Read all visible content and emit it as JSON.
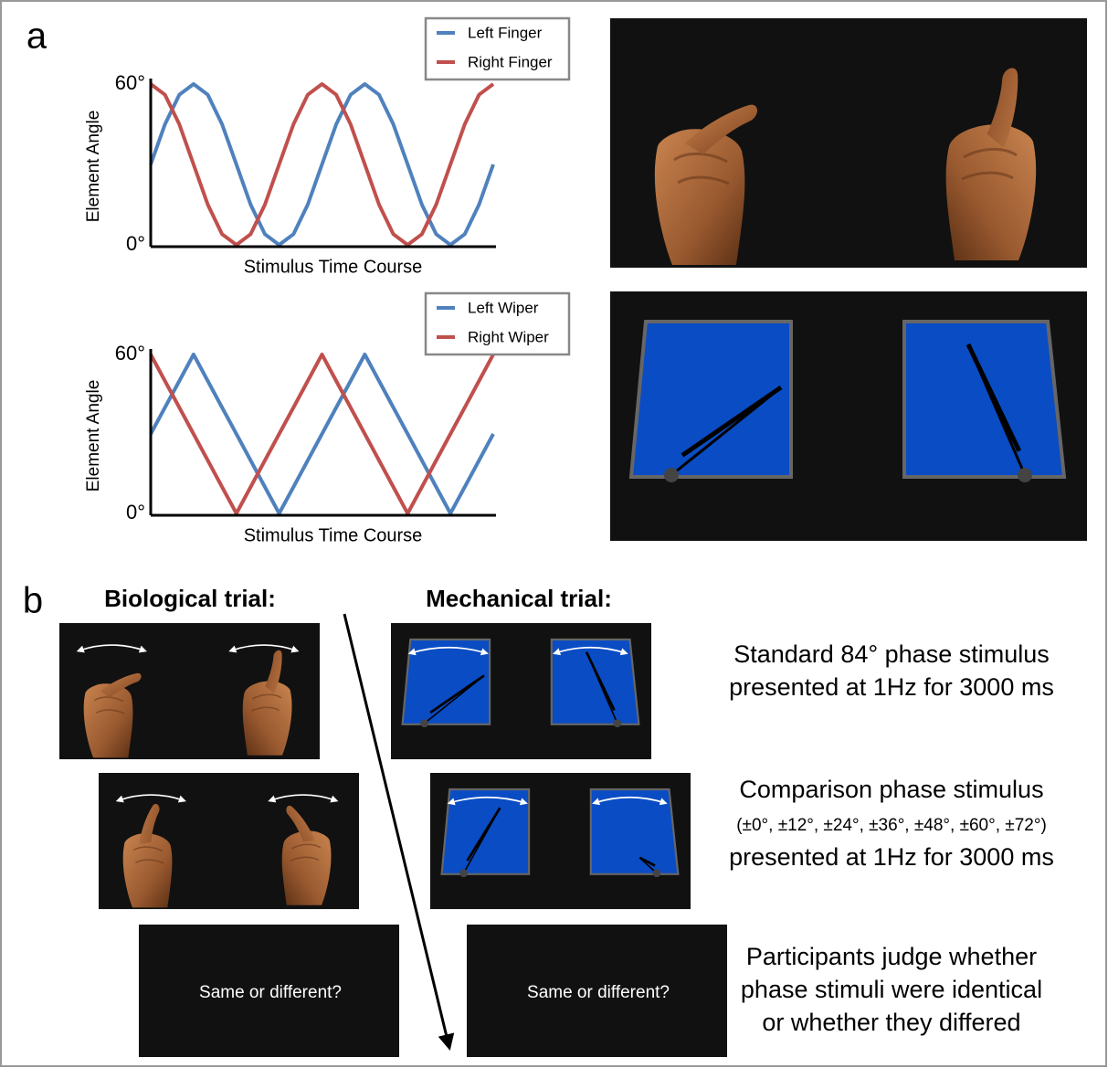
{
  "panel_labels": [
    "a",
    "b"
  ],
  "chart_data": [
    {
      "type": "line",
      "x_label": "Stimulus Time Course",
      "y_label": "Element Angle",
      "ylim": [
        0,
        60
      ],
      "yticks": [
        {
          "value": 0,
          "label": "0°"
        },
        {
          "value": 60,
          "label": "60°"
        }
      ],
      "legend": "top-right",
      "series": [
        {
          "name": "Left Finger",
          "color": "#4f81bd",
          "shape": "sine",
          "values": [
            30,
            45,
            56,
            60,
            56,
            45,
            30,
            15,
            4,
            0,
            4,
            15,
            30,
            45,
            56,
            60,
            56,
            45,
            30,
            15,
            4,
            0,
            4,
            15,
            30
          ]
        },
        {
          "name": "Right Finger",
          "color": "#c0504d",
          "shape": "sine",
          "values": [
            60,
            56,
            45,
            30,
            15,
            4,
            0,
            4,
            15,
            30,
            45,
            56,
            60,
            56,
            45,
            30,
            15,
            4,
            0,
            4,
            15,
            30,
            45,
            56,
            60
          ]
        }
      ]
    },
    {
      "type": "line",
      "x_label": "Stimulus Time Course",
      "y_label": "Element Angle",
      "ylim": [
        0,
        60
      ],
      "yticks": [
        {
          "value": 0,
          "label": "0°"
        },
        {
          "value": 60,
          "label": "60°"
        }
      ],
      "legend": "top-right",
      "series": [
        {
          "name": "Left Wiper",
          "color": "#4f81bd",
          "values": [
            30,
            40,
            50,
            60,
            50,
            40,
            30,
            20,
            10,
            0,
            10,
            20,
            30,
            40,
            50,
            60,
            50,
            40,
            30,
            20,
            10,
            0,
            10,
            20,
            30
          ]
        },
        {
          "name": "Right Wiper",
          "color": "#c0504d",
          "values": [
            60,
            50,
            40,
            30,
            20,
            10,
            0,
            10,
            20,
            30,
            40,
            50,
            60,
            50,
            40,
            30,
            20,
            10,
            0,
            10,
            20,
            30,
            40,
            50,
            60
          ]
        }
      ]
    }
  ],
  "trials": [
    {
      "title": "Biological trial:",
      "prompt": "Same or different?"
    },
    {
      "title": "Mechanical trial:",
      "prompt": "Same or different?"
    }
  ],
  "steps": [
    [
      "Standard 84° phase stimulus",
      "presented at 1Hz for 3000 ms"
    ],
    [
      "Comparison phase stimulus",
      "(±0°, ±12°, ±24°, ±36°, ±48°, ±60°, ±72°)",
      "presented at 1Hz for 3000 ms"
    ],
    [
      "Participants judge whether",
      "phase stimuli were identical",
      "or whether they differed"
    ]
  ]
}
